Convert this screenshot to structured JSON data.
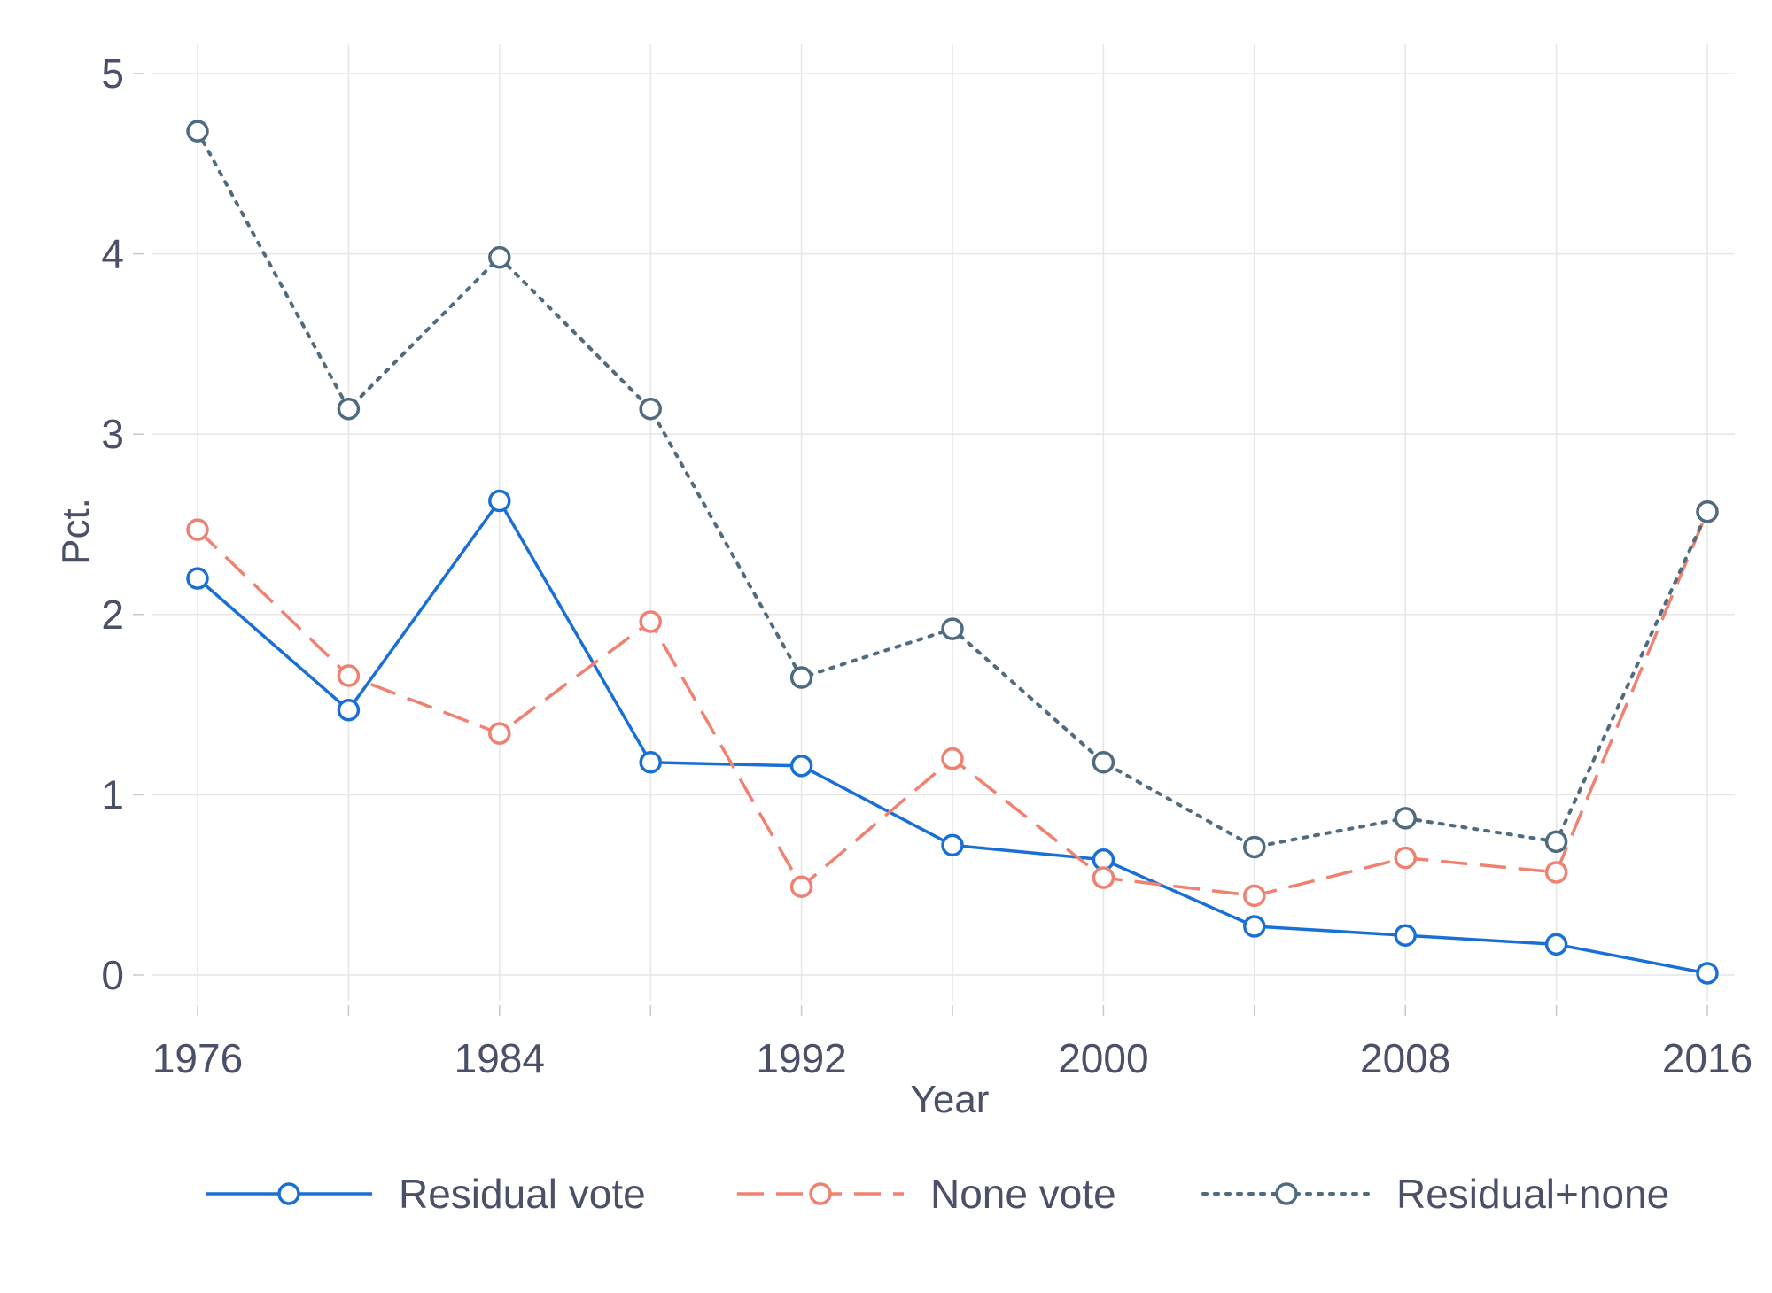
{
  "chart_data": {
    "type": "line",
    "title": "",
    "xlabel": "Year",
    "ylabel": "Pct.",
    "x": [
      1976,
      1980,
      1984,
      1988,
      1992,
      1996,
      2000,
      2004,
      2008,
      2012,
      2016
    ],
    "xticks": [
      1976,
      1984,
      1992,
      2000,
      2008,
      2016
    ],
    "xlim": [
      1976,
      2016
    ],
    "yticks": [
      0,
      1,
      2,
      3,
      4,
      5
    ],
    "ylim": [
      0,
      5
    ],
    "grid": true,
    "legend_position": "bottom",
    "series": [
      {
        "name": "Residual vote",
        "style": "solid",
        "color": "#1a6fd6",
        "values": [
          2.2,
          1.47,
          2.63,
          1.18,
          1.16,
          0.72,
          0.64,
          0.27,
          0.22,
          0.17,
          0.01
        ]
      },
      {
        "name": "None vote",
        "style": "dashed",
        "color": "#f08070",
        "values": [
          2.47,
          1.66,
          1.34,
          1.96,
          0.49,
          1.2,
          0.54,
          0.44,
          0.65,
          0.57,
          2.57
        ]
      },
      {
        "name": "Residual+none",
        "style": "dotted",
        "color": "#4f6b80",
        "values": [
          4.68,
          3.14,
          3.98,
          3.14,
          1.65,
          1.92,
          1.18,
          0.71,
          0.87,
          0.74,
          2.57
        ]
      }
    ]
  },
  "colors": {
    "text": "#4a5068",
    "grid": "#e6e6e6",
    "axis_tick": "#c8c8c8"
  }
}
